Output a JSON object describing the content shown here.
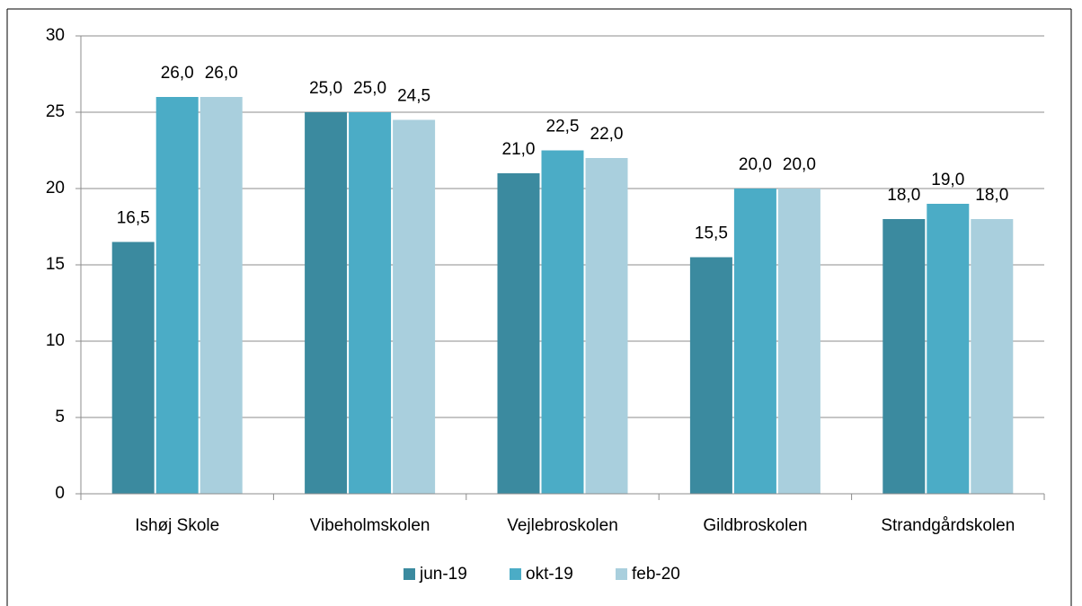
{
  "chart_data": {
    "type": "bar",
    "categories": [
      "Ishøj Skole",
      "Vibeholmskolen",
      "Vejlebroskolen",
      "Gildbroskolen",
      "Strandgårdskolen"
    ],
    "series": [
      {
        "name": "jun-19",
        "color": "#3b8a9f",
        "values": [
          16.5,
          25.0,
          21.0,
          15.5,
          18.0
        ],
        "value_labels": [
          "16,5",
          "25,0",
          "21,0",
          "15,5",
          "18,0"
        ]
      },
      {
        "name": "okt-19",
        "color": "#4bacc6",
        "values": [
          26.0,
          25.0,
          22.5,
          20.0,
          19.0
        ],
        "value_labels": [
          "26,0",
          "25,0",
          "22,5",
          "20,0",
          "19,0"
        ]
      },
      {
        "name": "feb-20",
        "color": "#a9cfdd",
        "values": [
          26.0,
          24.5,
          22.0,
          20.0,
          18.0
        ],
        "value_labels": [
          "26,0",
          "24,5",
          "22,0",
          "20,0",
          "18,0"
        ]
      }
    ],
    "ylim": [
      0,
      30
    ],
    "yticks": [
      0,
      5,
      10,
      15,
      20,
      25,
      30
    ],
    "grid": true,
    "legend": "bottom"
  }
}
